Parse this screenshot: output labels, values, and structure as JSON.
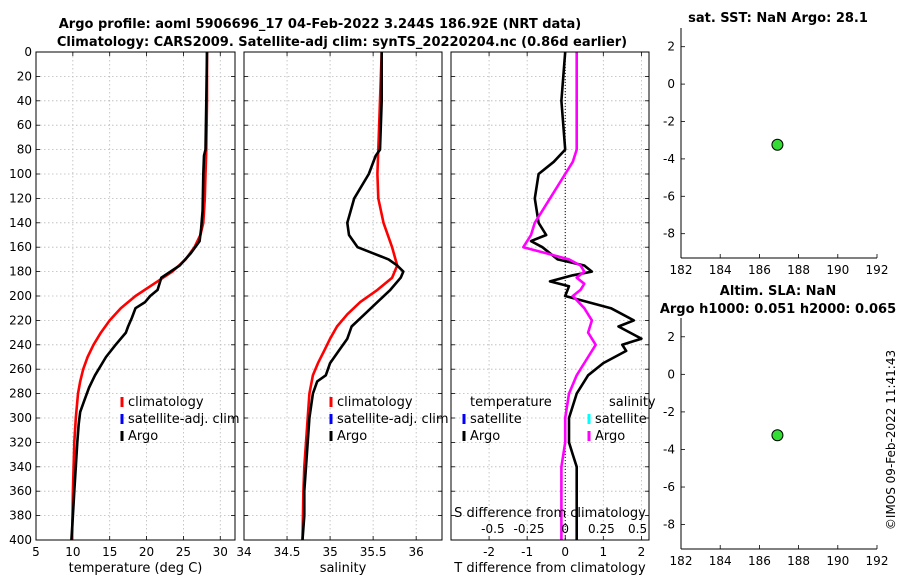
{
  "titles": {
    "line1": "Argo profile: aoml 5906696_17 04-Feb-2022 3.244S 186.92E (NRT data)",
    "line2": "Climatology: CARS2009. Satellite-adj clim: synTS_20220204.nc (0.86d earlier)",
    "sst": "sat. SST: NaN Argo: 28.1",
    "sla1": "Altim. SLA: NaN",
    "sla2": "Argo h1000: 0.051 h2000: 0.065"
  },
  "watermark": "©IMOS 09-Feb-2022 11:41:43",
  "colors": {
    "climatology": "#ff0000",
    "satellite_clim": "#0000ff",
    "argo": "#000000",
    "salinity_argo": "#ff00ff",
    "salinity_satellite": "#00ffff",
    "marker": "#33dd33"
  },
  "depth_axis": {
    "ylim": [
      0,
      400
    ],
    "ticks": [
      "0",
      "20",
      "40",
      "60",
      "80",
      "100",
      "120",
      "140",
      "160",
      "180",
      "200",
      "220",
      "240",
      "260",
      "280",
      "300",
      "320",
      "340",
      "360",
      "380",
      "400"
    ]
  },
  "chart_data": [
    {
      "type": "line",
      "id": "temperature",
      "xlabel": "temperature (deg C)",
      "xlim": [
        5,
        32
      ],
      "xticks": [
        5,
        10,
        15,
        20,
        25,
        30
      ],
      "xticklabels": [
        "5",
        "10",
        "15",
        "20",
        "25",
        "30"
      ],
      "ylim": [
        0,
        400
      ],
      "legend": [
        {
          "label": "climatology",
          "color": "#ff0000"
        },
        {
          "label": "satellite-adj. clim",
          "color": "#0000ff"
        },
        {
          "label": "Argo",
          "color": "#000000"
        }
      ],
      "series": [
        {
          "name": "climatology",
          "color": "#ff0000",
          "x": [
            28.2,
            28.2,
            28.1,
            28.0,
            27.9,
            27.7,
            27.3,
            26.5,
            25.3,
            23.5,
            21.0,
            18.5,
            16.5,
            15.0,
            13.8,
            12.8,
            12.0,
            11.4,
            11.0,
            10.7,
            10.4,
            10.2,
            10.1,
            10.0,
            9.9
          ],
          "y": [
            0,
            40,
            80,
            100,
            120,
            140,
            150,
            160,
            170,
            180,
            190,
            200,
            210,
            220,
            230,
            240,
            250,
            260,
            270,
            280,
            300,
            320,
            340,
            360,
            400
          ]
        },
        {
          "name": "Argo",
          "color": "#000000",
          "x": [
            28.2,
            28.1,
            28.0,
            27.8,
            27.7,
            27.6,
            27.4,
            27.2,
            26.0,
            24.5,
            22.0,
            21.5,
            20.5,
            19.8,
            18.5,
            18.0,
            17.5,
            17.2,
            15.8,
            14.5,
            13.0,
            12.2,
            11.6,
            11.0,
            10.8,
            10.6,
            10.4,
            10.2,
            10.0,
            9.8
          ],
          "y": [
            0,
            40,
            80,
            85,
            100,
            130,
            145,
            155,
            165,
            175,
            185,
            195,
            200,
            205,
            210,
            218,
            225,
            230,
            240,
            250,
            265,
            275,
            285,
            295,
            305,
            320,
            340,
            360,
            380,
            400
          ]
        }
      ]
    },
    {
      "type": "line",
      "id": "salinity",
      "xlabel": "salinity",
      "xlim": [
        34,
        36.3
      ],
      "xticks": [
        34,
        34.5,
        35,
        35.5,
        36
      ],
      "xticklabels": [
        "34",
        "34.5",
        "35",
        "35.5",
        "36"
      ],
      "ylim": [
        0,
        400
      ],
      "legend": [
        {
          "label": "climatology",
          "color": "#ff0000"
        },
        {
          "label": "satellite-adj. clim",
          "color": "#0000ff"
        },
        {
          "label": "Argo",
          "color": "#000000"
        }
      ],
      "series": [
        {
          "name": "climatology",
          "color": "#ff0000",
          "x": [
            35.6,
            35.58,
            35.56,
            35.55,
            35.56,
            35.62,
            35.72,
            35.78,
            35.72,
            35.55,
            35.35,
            35.2,
            35.08,
            35.0,
            34.93,
            34.86,
            34.8,
            34.76,
            34.74,
            34.72,
            34.7,
            34.69,
            34.68
          ],
          "y": [
            0,
            40,
            80,
            100,
            120,
            140,
            160,
            175,
            185,
            195,
            205,
            215,
            225,
            235,
            245,
            255,
            265,
            280,
            300,
            320,
            340,
            360,
            400
          ]
        },
        {
          "name": "Argo",
          "color": "#000000",
          "x": [
            35.6,
            35.6,
            35.58,
            35.53,
            35.45,
            35.28,
            35.2,
            35.22,
            35.32,
            35.5,
            35.68,
            35.78,
            35.85,
            35.82,
            35.7,
            35.55,
            35.4,
            35.25,
            35.2,
            35.1,
            35.0,
            34.95,
            34.85,
            34.8,
            34.76,
            34.74,
            34.72,
            34.7,
            34.7,
            34.68
          ],
          "y": [
            0,
            40,
            80,
            85,
            100,
            120,
            140,
            150,
            160,
            165,
            170,
            175,
            180,
            185,
            195,
            205,
            215,
            225,
            235,
            245,
            255,
            265,
            270,
            280,
            300,
            320,
            340,
            360,
            380,
            400
          ]
        }
      ]
    },
    {
      "type": "line",
      "id": "difference",
      "xlabel": "T difference from climatology",
      "xlabel_top": "S difference from climatology",
      "xlim": [
        -3,
        2.2
      ],
      "xticks": [
        -2,
        -1,
        0,
        1,
        2
      ],
      "xticklabels": [
        "-2",
        "-1",
        "0",
        "1",
        "2"
      ],
      "s_xticks": [
        -1.9,
        -0.95,
        0,
        0.95,
        1.9
      ],
      "s_xticklabels": [
        "-0.5",
        "-0.25",
        "0",
        "0.25",
        "0.5"
      ],
      "ylim": [
        0,
        400
      ],
      "legend": [
        {
          "label": "temperature",
          "color": "#000000"
        },
        {
          "label": "satellite",
          "color": "#0000ff"
        },
        {
          "label": "Argo",
          "color": "#000000"
        },
        {
          "label": "salinity",
          "color": "#000000"
        },
        {
          "label": "satellite",
          "color": "#00ffff"
        },
        {
          "label": "Argo",
          "color": "#ff00ff"
        }
      ],
      "series": [
        {
          "name": "T diff Argo",
          "color": "#000000",
          "x": [
            0.0,
            -0.1,
            0.0,
            -0.3,
            -0.7,
            -0.8,
            -0.7,
            -0.5,
            -0.9,
            -0.6,
            -0.4,
            -0.2,
            0.5,
            0.7,
            0.2,
            -0.4,
            0.1,
            0.0,
            0.6,
            1.2,
            1.8,
            1.4,
            2.0,
            1.5,
            1.6,
            1.0,
            0.6,
            0.3,
            0.1,
            0.1,
            0.2,
            0.3,
            0.3,
            0.3,
            0.3
          ],
          "y": [
            0,
            40,
            80,
            90,
            100,
            120,
            140,
            150,
            155,
            160,
            165,
            170,
            175,
            180,
            183,
            188,
            192,
            200,
            205,
            210,
            220,
            225,
            235,
            240,
            245,
            255,
            265,
            280,
            300,
            320,
            330,
            340,
            360,
            380,
            400
          ]
        },
        {
          "name": "S diff Argo",
          "color": "#ff00ff",
          "x": [
            0.3,
            0.3,
            0.3,
            0.2,
            0.0,
            -0.4,
            -0.8,
            -0.9,
            -1.0,
            -1.1,
            -0.5,
            0.1,
            0.4,
            0.5,
            0.3,
            0.5,
            0.4,
            0.2,
            0.5,
            0.7,
            0.6,
            0.8,
            0.6,
            0.3,
            0.1,
            0.0,
            0.0,
            -0.1,
            -0.1,
            -0.1,
            -0.1
          ],
          "y": [
            0,
            40,
            80,
            90,
            100,
            120,
            140,
            150,
            155,
            160,
            165,
            170,
            175,
            180,
            185,
            190,
            195,
            200,
            210,
            220,
            230,
            240,
            250,
            265,
            280,
            300,
            320,
            340,
            360,
            380,
            400
          ]
        }
      ]
    },
    {
      "type": "scatter",
      "id": "sst",
      "title": "sat. SST: NaN Argo: 28.1",
      "xlim": [
        182,
        192
      ],
      "xticks": [
        182,
        184,
        186,
        188,
        190,
        192
      ],
      "xticklabels": [
        "182",
        "184",
        "186",
        "188",
        "190",
        "192"
      ],
      "ylim": [
        -9.3,
        3
      ],
      "yticks": [
        2,
        0,
        -2,
        -4,
        -6,
        -8
      ],
      "yticklabels": [
        "2",
        "0",
        "-2",
        "-4",
        "-6",
        "-8"
      ],
      "points": [
        {
          "x": 186.92,
          "y": -3.244
        }
      ]
    },
    {
      "type": "scatter",
      "id": "sla",
      "title": "Altim. SLA: NaN",
      "xlim": [
        182,
        192
      ],
      "xticks": [
        182,
        184,
        186,
        188,
        190,
        192
      ],
      "xticklabels": [
        "182",
        "184",
        "186",
        "188",
        "190",
        "192"
      ],
      "ylim": [
        -9.3,
        3
      ],
      "yticks": [
        2,
        0,
        -2,
        -4,
        -6,
        -8
      ],
      "yticklabels": [
        "2",
        "0",
        "-2",
        "-4",
        "-6",
        "-8"
      ],
      "points": [
        {
          "x": 186.92,
          "y": -3.244
        }
      ]
    }
  ]
}
